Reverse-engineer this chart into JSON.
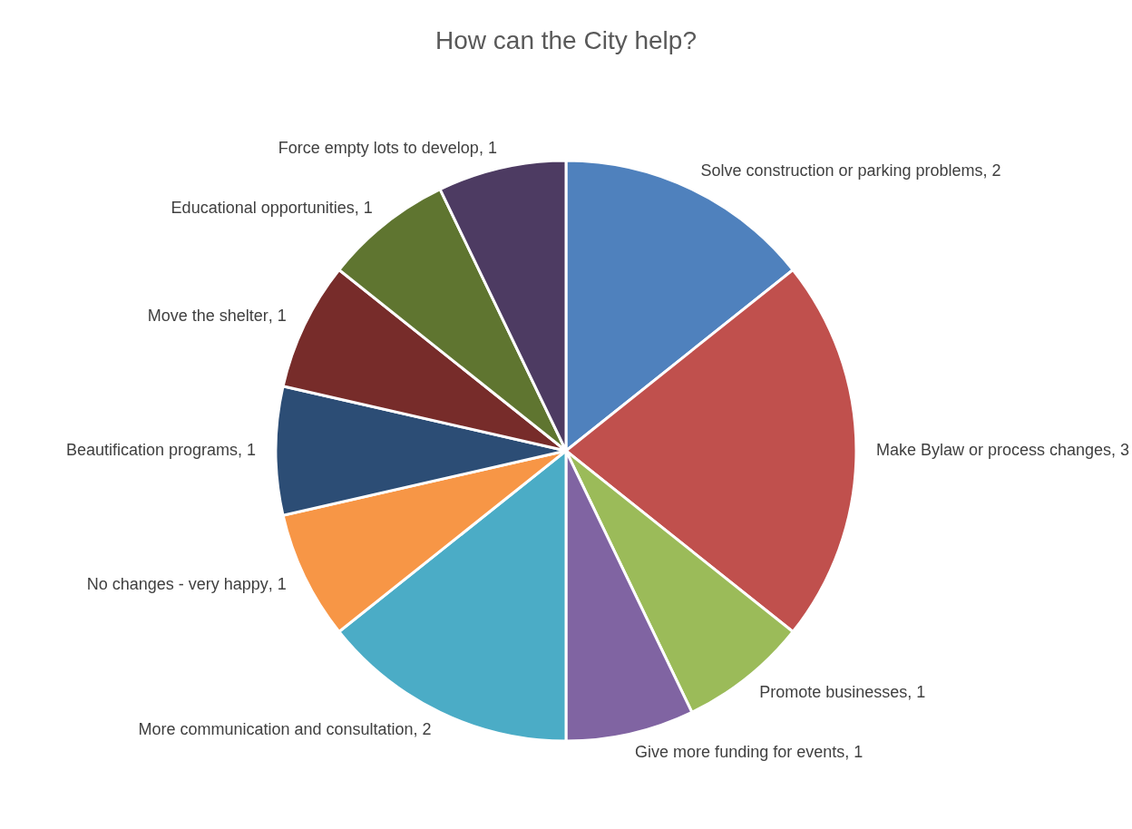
{
  "chart_data": {
    "type": "pie",
    "title": "How can the City help?",
    "categories": [
      "Solve construction or parking problems",
      "Make Bylaw or process changes",
      "Promote businesses",
      "Give more funding for events",
      "More communication and consultation",
      "No changes - very happy",
      "Beautification programs",
      "Move the shelter",
      "Educational opportunities",
      "Force empty lots to develop"
    ],
    "values": [
      2,
      3,
      1,
      1,
      2,
      1,
      1,
      1,
      1,
      1
    ],
    "colors": [
      "#4f81bd",
      "#c0504d",
      "#9bbb59",
      "#8064a2",
      "#4bacc6",
      "#f79646",
      "#2c4d75",
      "#772c2a",
      "#5f7530",
      "#4d3b62"
    ],
    "value_labels": [
      ", 2",
      ", 3",
      ", 1",
      ", 1",
      ", 2",
      ", 1",
      ", 1",
      ", 1",
      ", 1",
      ", 1"
    ],
    "legend": false
  }
}
